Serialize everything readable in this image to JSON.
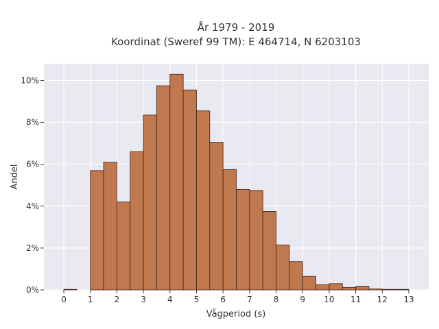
{
  "chart_data": {
    "type": "bar",
    "title_line1": "År 1979 - 2019",
    "title_line2": "Koordinat (Sweref 99 TM): E 464714, N 6203103",
    "xlabel": "Vågperiod (s)",
    "ylabel": "Andel",
    "xlim": [
      -0.75,
      13.75
    ],
    "ylim": [
      0,
      10.8
    ],
    "x_ticks": [
      0,
      1,
      2,
      3,
      4,
      5,
      6,
      7,
      8,
      9,
      10,
      11,
      12,
      13
    ],
    "y_ticks": [
      0,
      2,
      4,
      6,
      8,
      10
    ],
    "y_tick_labels": [
      "0%",
      "2%",
      "4%",
      "6%",
      "8%",
      "10%"
    ],
    "bin_width": 0.5,
    "bins": [
      {
        "start": 0.0,
        "value": 0.0
      },
      {
        "start": 1.0,
        "value": 5.7
      },
      {
        "start": 1.5,
        "value": 6.1
      },
      {
        "start": 2.0,
        "value": 4.2
      },
      {
        "start": 2.5,
        "value": 6.6
      },
      {
        "start": 3.0,
        "value": 8.35
      },
      {
        "start": 3.5,
        "value": 9.75
      },
      {
        "start": 4.0,
        "value": 10.3
      },
      {
        "start": 4.5,
        "value": 9.55
      },
      {
        "start": 5.0,
        "value": 8.55
      },
      {
        "start": 5.5,
        "value": 7.05
      },
      {
        "start": 6.0,
        "value": 5.75
      },
      {
        "start": 6.5,
        "value": 4.8
      },
      {
        "start": 7.0,
        "value": 4.75
      },
      {
        "start": 7.5,
        "value": 3.75
      },
      {
        "start": 8.0,
        "value": 2.15
      },
      {
        "start": 8.5,
        "value": 1.35
      },
      {
        "start": 9.0,
        "value": 0.65
      },
      {
        "start": 9.5,
        "value": 0.25
      },
      {
        "start": 10.0,
        "value": 0.3
      },
      {
        "start": 10.5,
        "value": 0.12
      },
      {
        "start": 11.0,
        "value": 0.18
      },
      {
        "start": 11.5,
        "value": 0.05
      },
      {
        "start": 12.0,
        "value": 0.02
      },
      {
        "start": 12.5,
        "value": 0.01
      }
    ],
    "grid": true,
    "colors": {
      "bar_fill": "#c0784f",
      "bar_edge": "#3d2418",
      "plot_bg": "#e9e9f1",
      "grid": "#ffffff"
    }
  }
}
